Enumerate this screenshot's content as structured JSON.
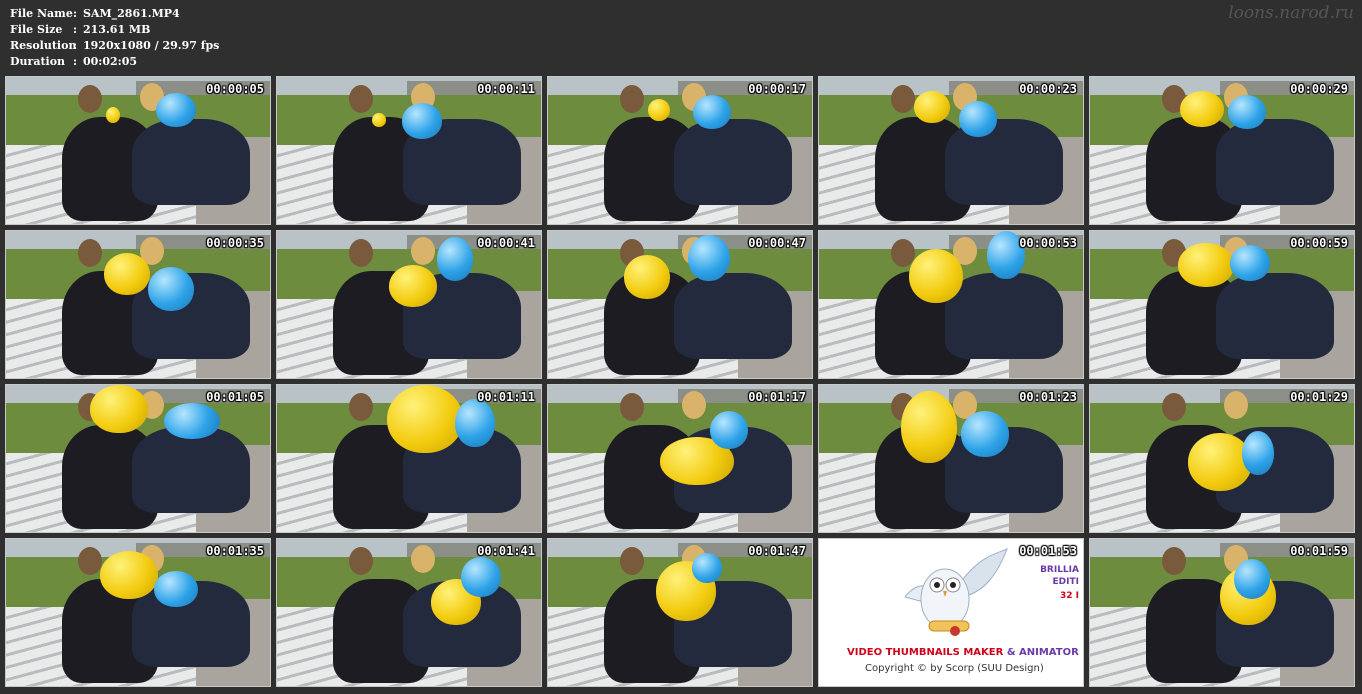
{
  "info": {
    "rows": [
      {
        "label": "File Name",
        "sep": ":",
        "value": "SAM_2861.MP4"
      },
      {
        "label": "File Size",
        "sep": ":",
        "value": "213.61 MB"
      },
      {
        "label": "Resolution",
        "sep": ":",
        "value": "1920x1080 / 29.97 fps"
      },
      {
        "label": "Duration",
        "sep": ":",
        "value": "00:02:05"
      }
    ]
  },
  "watermark": "loons.narod.ru",
  "thumbnails": [
    "00:00:05",
    "00:00:11",
    "00:00:17",
    "00:00:23",
    "00:00:29",
    "00:00:35",
    "00:00:41",
    "00:00:47",
    "00:00:53",
    "00:00:59",
    "00:01:05",
    "00:01:11",
    "00:01:17",
    "00:01:23",
    "00:01:29",
    "00:01:35",
    "00:01:41",
    "00:01:47",
    "00:01:53",
    "00:01:59"
  ],
  "promo": {
    "line1_a": "VIDEO THUMBNAILS MAKER",
    "line1_b": "& ANIMATOR",
    "line2": "Copyright © by Scorp (SUU Design)",
    "side1": "BRILLIA",
    "side2": "EDITI",
    "side3": "32 I"
  },
  "colors": {
    "background": "#2f2f2f",
    "yellow_balloon": "#f3cc10",
    "blue_balloon": "#2ea3e8"
  }
}
